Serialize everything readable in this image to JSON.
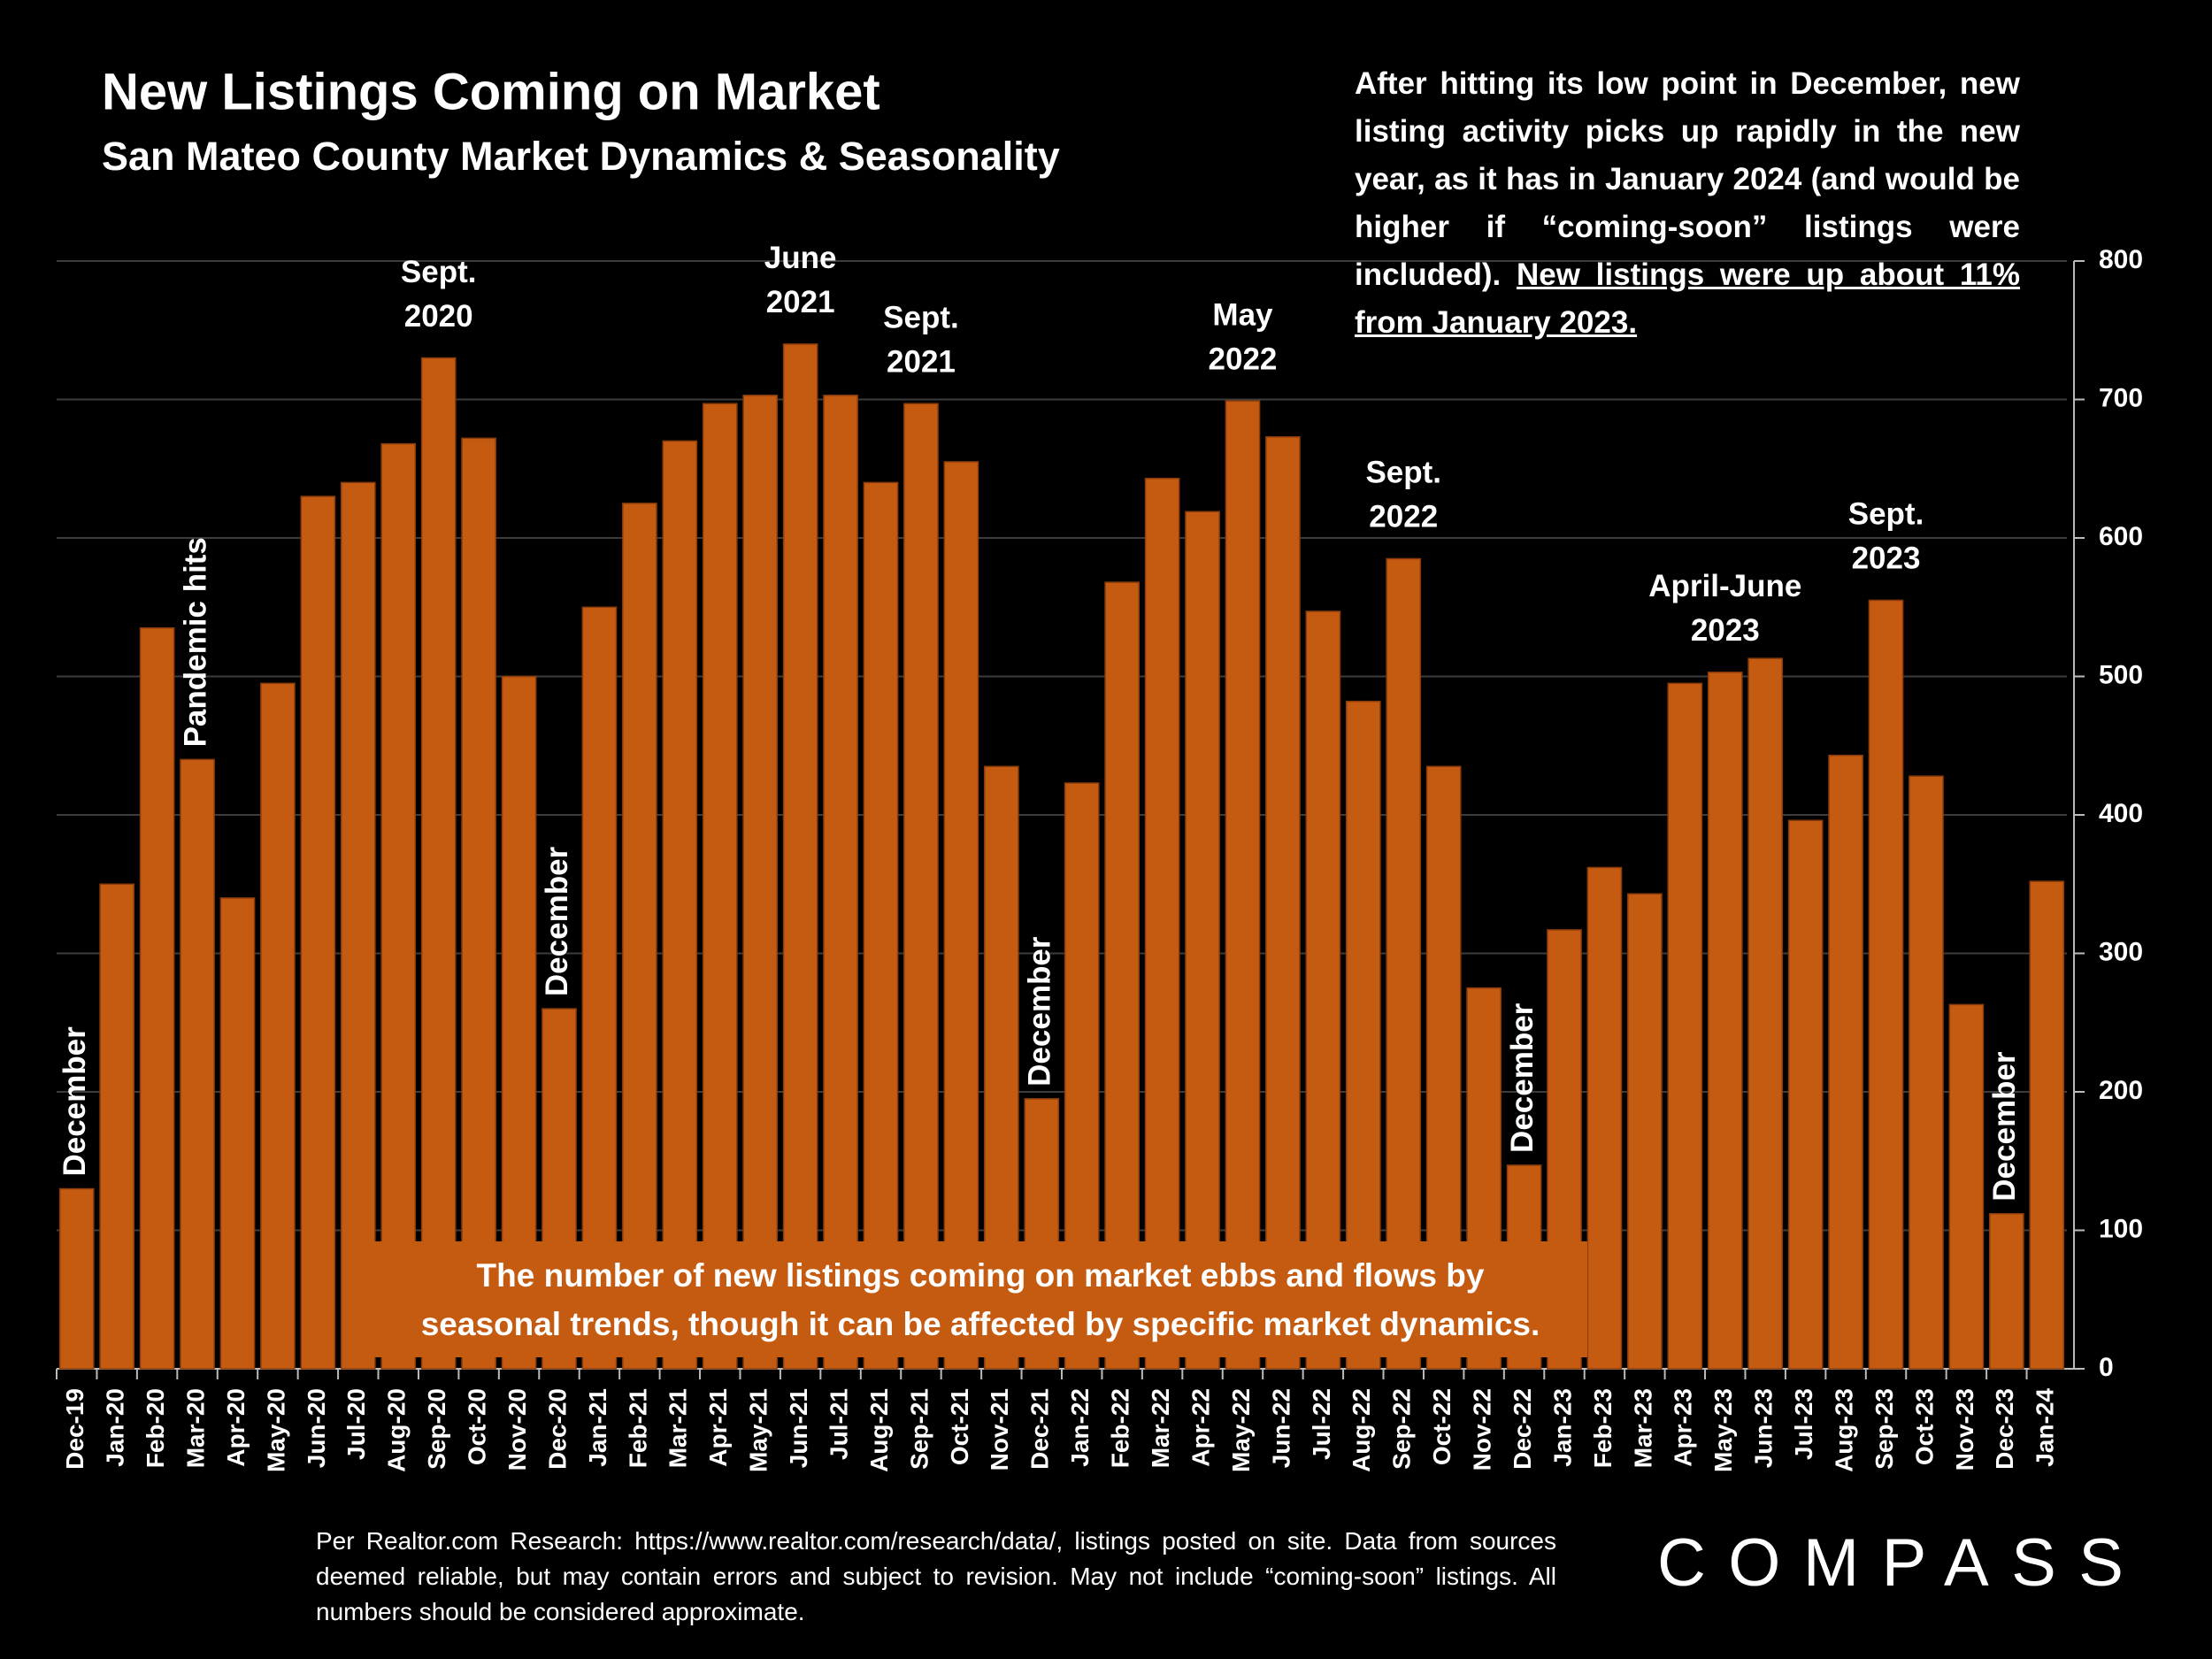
{
  "chart_data": {
    "type": "bar",
    "title": "New Listings Coming on Market",
    "subtitle": "San Mateo County Market Dynamics & Seasonality",
    "categories": [
      "Dec-19",
      "Jan-20",
      "Feb-20",
      "Mar-20",
      "Apr-20",
      "May-20",
      "Jun-20",
      "Jul-20",
      "Aug-20",
      "Sep-20",
      "Oct-20",
      "Nov-20",
      "Dec-20",
      "Jan-21",
      "Feb-21",
      "Mar-21",
      "Apr-21",
      "May-21",
      "Jun-21",
      "Jul-21",
      "Aug-21",
      "Sep-21",
      "Oct-21",
      "Nov-21",
      "Dec-21",
      "Jan-22",
      "Feb-22",
      "Mar-22",
      "Apr-22",
      "May-22",
      "Jun-22",
      "Jul-22",
      "Aug-22",
      "Sep-22",
      "Oct-22",
      "Nov-22",
      "Dec-22",
      "Jan-23",
      "Feb-23",
      "Mar-23",
      "Apr-23",
      "May-23",
      "Jun-23",
      "Jul-23",
      "Aug-23",
      "Sep-23",
      "Oct-23",
      "Nov-23",
      "Dec-23",
      "Jan-24"
    ],
    "values": [
      130,
      350,
      535,
      440,
      340,
      495,
      630,
      640,
      668,
      730,
      672,
      500,
      260,
      550,
      625,
      670,
      697,
      703,
      740,
      703,
      640,
      697,
      655,
      435,
      195,
      423,
      568,
      643,
      619,
      699,
      673,
      547,
      482,
      585,
      435,
      275,
      147,
      317,
      362,
      343,
      495,
      503,
      513,
      396,
      443,
      555,
      428,
      263,
      112,
      352
    ],
    "color": "#C55A11",
    "ylim": [
      0,
      800
    ],
    "yticks": [
      0,
      100,
      200,
      300,
      400,
      500,
      600,
      700,
      800
    ],
    "grid": true,
    "annotations": [
      {
        "lines": [
          "December"
        ],
        "category": "Dec-19",
        "vertical": true
      },
      {
        "lines": [
          "Pandemic hits"
        ],
        "category": "Mar-20",
        "vertical": true
      },
      {
        "lines": [
          "Sept.",
          "2020"
        ],
        "category": "Sep-20",
        "vertical": false
      },
      {
        "lines": [
          "December"
        ],
        "category": "Dec-20",
        "vertical": true
      },
      {
        "lines": [
          "June",
          "2021"
        ],
        "category": "Jun-21",
        "vertical": false
      },
      {
        "lines": [
          "Sept.",
          "2021"
        ],
        "category": "Sep-21",
        "vertical": false
      },
      {
        "lines": [
          "December"
        ],
        "category": "Dec-21",
        "vertical": true
      },
      {
        "lines": [
          "May",
          "2022"
        ],
        "category": "May-22",
        "vertical": false
      },
      {
        "lines": [
          "Sept.",
          "2022"
        ],
        "category": "Sep-22",
        "vertical": false
      },
      {
        "lines": [
          "December"
        ],
        "category": "Dec-22",
        "vertical": true
      },
      {
        "lines": [
          "April-June",
          "2023"
        ],
        "category": "May-23",
        "vertical": false
      },
      {
        "lines": [
          "Sept.",
          "2023"
        ],
        "category": "Sep-23",
        "vertical": false
      },
      {
        "lines": [
          "December"
        ],
        "category": "Dec-23",
        "vertical": true
      }
    ],
    "callout": {
      "text": "After hitting its low point in December, new listing activity picks up rapidly in the new year, as it has in January 2024 (and would be higher if “coming-soon” listings were included).",
      "underlined": "New listings were up about 11% from January 2023."
    },
    "note": {
      "lines": [
        "The number of new listings coming on market ebbs and flows by",
        "seasonal trends, though it can be affected by specific market dynamics."
      ]
    },
    "source": "Per Realtor.com Research: https://www.realtor.com/research/data/, listings posted on site. Data from sources deemed reliable, but may contain errors and subject to revision. May not include “coming-soon” listings. All numbers should be considered approximate.",
    "logo": "COMPASS"
  }
}
